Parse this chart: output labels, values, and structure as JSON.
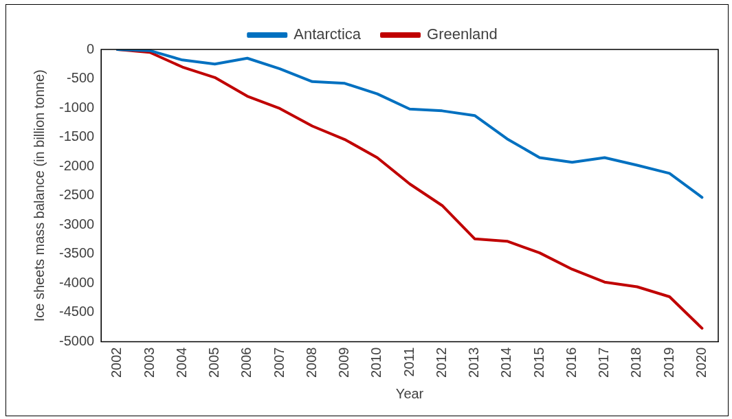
{
  "chart_data": {
    "type": "line",
    "xlabel": "Year",
    "ylabel": "Ice sheets mass balance (in billion tonne)",
    "categories": [
      "2002",
      "2003",
      "2004",
      "2005",
      "2006",
      "2007",
      "2008",
      "2009",
      "2010",
      "2011",
      "2012",
      "2013",
      "2014",
      "2015",
      "2016",
      "2017",
      "2018",
      "2019",
      "2020"
    ],
    "series": [
      {
        "name": "Antarctica",
        "color": "#0070c0",
        "values": [
          0,
          -20,
          -180,
          -250,
          -150,
          -330,
          -550,
          -580,
          -760,
          -1020,
          -1050,
          -1130,
          -1530,
          -1850,
          -1930,
          -1850,
          -1980,
          -2120,
          -2530
        ]
      },
      {
        "name": "Greenland",
        "color": "#c00000",
        "values": [
          0,
          -50,
          -300,
          -480,
          -800,
          -1010,
          -1310,
          -1540,
          -1850,
          -2300,
          -2670,
          -3240,
          -3280,
          -3480,
          -3760,
          -3980,
          -4060,
          -4230,
          -4770
        ]
      }
    ],
    "ylim": [
      -5000,
      0
    ],
    "yticks": [
      0,
      -500,
      -1000,
      -1500,
      -2000,
      -2500,
      -3000,
      -3500,
      -4000,
      -4500,
      -5000
    ],
    "grid": false,
    "legend": "top",
    "marker": "none",
    "line_style": "solid"
  }
}
